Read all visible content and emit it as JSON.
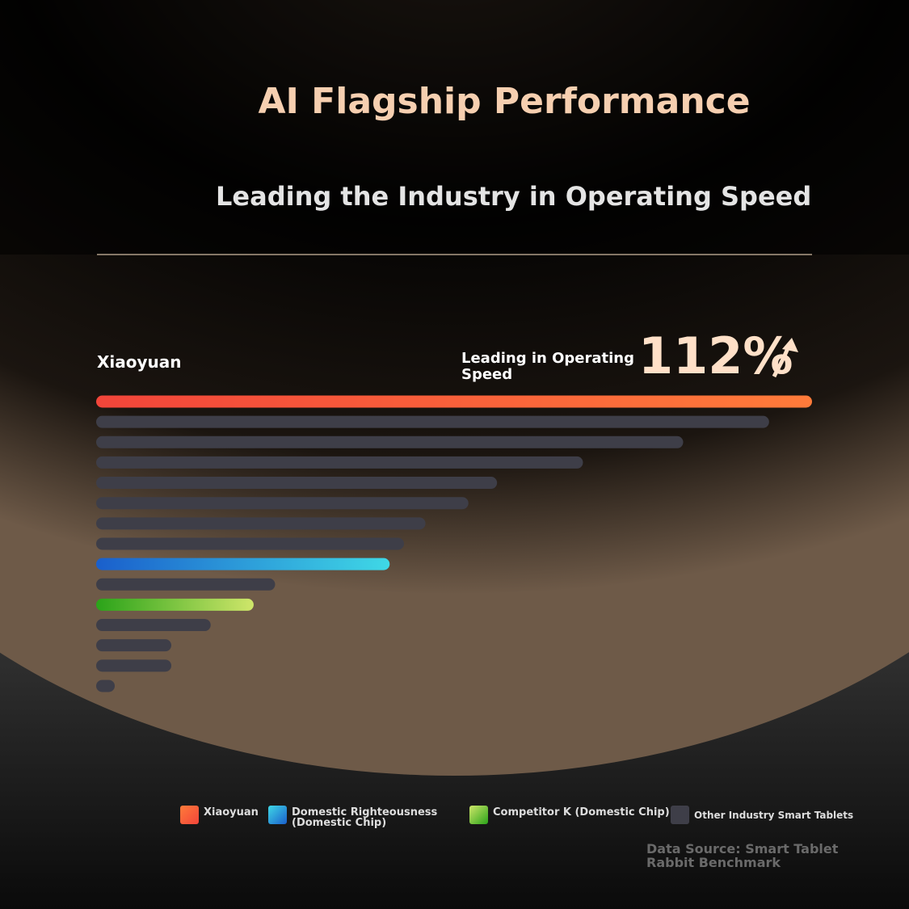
{
  "chart_data": {
    "type": "bar",
    "orientation": "horizontal",
    "title": "AI Flagship Performance",
    "subtitle": "Leading the Industry in Operating Speed",
    "categories": [
      "Xiaoyuan",
      null,
      null,
      null,
      null,
      null,
      null,
      null,
      null,
      null,
      null,
      null,
      null,
      null,
      null
    ],
    "xlim": [
      0,
      100
    ],
    "series": [
      {
        "name": "Xiaoyuan",
        "color": [
          "#f2453a",
          "#ff7b3a"
        ],
        "values": [
          100,
          null,
          null,
          null,
          null,
          null,
          null,
          null,
          null,
          null,
          null,
          null,
          null,
          null,
          null
        ]
      },
      {
        "name": "Domestic Righteousness (Domestic Chip)",
        "color": [
          "#1a5fcc",
          "#3fd8e6"
        ],
        "values": [
          null,
          null,
          null,
          null,
          null,
          null,
          null,
          null,
          41,
          null,
          null,
          null,
          null,
          null,
          null
        ]
      },
      {
        "name": "Competitor K (Domestic Chip)",
        "color": [
          "#2aa319",
          "#cfe66a"
        ],
        "values": [
          null,
          null,
          null,
          null,
          null,
          null,
          null,
          null,
          null,
          null,
          22,
          null,
          null,
          null,
          null
        ]
      },
      {
        "name": "Other Industry Smart Tablets",
        "color": [
          "#3e3e48",
          "#3e3e48"
        ],
        "values": [
          null,
          94,
          82,
          68,
          56,
          52,
          46,
          43,
          null,
          25,
          null,
          16,
          10.5,
          10.5,
          2.6
        ]
      }
    ],
    "highlight": {
      "label": "Leading in Operating Speed",
      "value": 112,
      "value_label": "112%"
    },
    "source": "Data Source: Smart Tablet Rabbit Benchmark"
  }
}
